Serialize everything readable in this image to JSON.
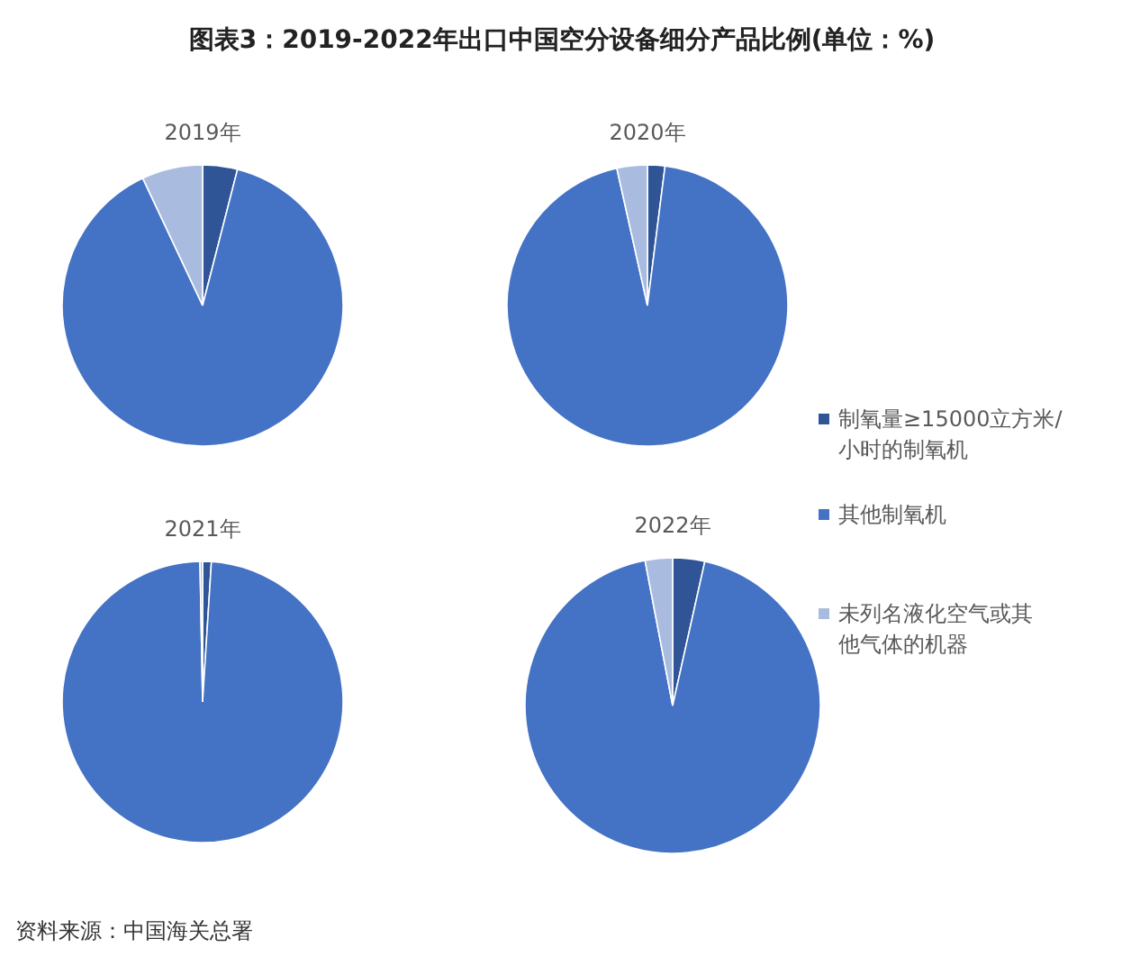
{
  "chart_data": [
    {
      "type": "other",
      "title": "图表3：2019-2022年出口中国空分设备细分产品比例(单位：%)",
      "annotations": [
        "资料来源：中国海关总署"
      ]
    },
    {
      "type": "pie",
      "title": "2019年",
      "categories": [
        "制氧量≥15000立方米/小时的制氧机",
        "其他制氧机",
        "未列名液化空气或其他气体的机器"
      ],
      "values": [
        4,
        89,
        7
      ],
      "colors": [
        "#2f5597",
        "#4472c4",
        "#a9bce0"
      ],
      "legend": "right"
    },
    {
      "type": "pie",
      "title": "2020年",
      "categories": [
        null,
        null,
        null
      ],
      "values": [
        2,
        94.5,
        3.5
      ],
      "colors": [
        "#2f5597",
        "#4472c4",
        "#a9bce0"
      ]
    },
    {
      "type": "pie",
      "title": "2021年",
      "categories": [
        null,
        null,
        null
      ],
      "values": [
        1,
        98.7,
        0.3
      ],
      "colors": [
        "#2f5597",
        "#4472c4",
        "#a9bce0"
      ]
    },
    {
      "type": "pie",
      "title": "2022年",
      "categories": [
        null,
        null,
        null
      ],
      "values": [
        3.5,
        93.5,
        3
      ],
      "colors": [
        "#2f5597",
        "#4472c4",
        "#a9bce0"
      ]
    }
  ]
}
